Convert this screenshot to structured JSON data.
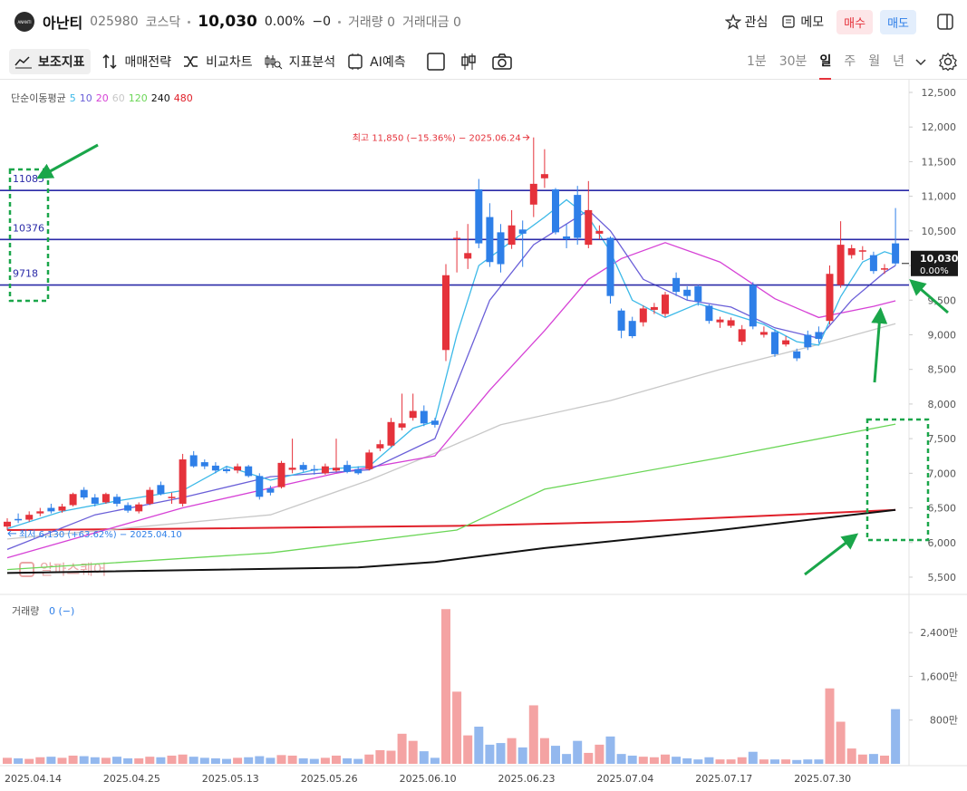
{
  "header": {
    "logo": "ANANTI",
    "name": "아난티",
    "code": "025980",
    "market": "코스닥",
    "price": "10,030",
    "change_pct": "0.00%",
    "change": "−0",
    "volume": "거래량 0",
    "amount": "거래대금 0",
    "watch": "관심",
    "memo": "메모",
    "buy": "매수",
    "sell": "매도"
  },
  "toolbar": {
    "tools": [
      "보조지표",
      "매매전략",
      "비교차트",
      "지표분석",
      "AI예측"
    ],
    "periods": [
      "1분",
      "30분",
      "일",
      "주",
      "월",
      "년"
    ],
    "active_period": 2
  },
  "chart": {
    "ylim": [
      5264,
      12657
    ],
    "yticks": [
      {
        "value": 5500,
        "label": "5,500"
      },
      {
        "value": 6000,
        "label": "6,000"
      },
      {
        "value": 6500,
        "label": "6,500"
      },
      {
        "value": 7000,
        "label": "7,000"
      },
      {
        "value": 7500,
        "label": "7,500"
      },
      {
        "value": 8000,
        "label": "8,000"
      },
      {
        "value": 8500,
        "label": "8,500"
      },
      {
        "value": 9000,
        "label": "9,000"
      },
      {
        "value": 9500,
        "label": "9,500"
      },
      {
        "value": 10000,
        "label": "10,000"
      },
      {
        "value": 10500,
        "label": "10,500"
      },
      {
        "value": 11000,
        "label": "11,000"
      },
      {
        "value": 11500,
        "label": "11,500"
      },
      {
        "value": 12000,
        "label": "12,000"
      },
      {
        "value": 12500,
        "label": "12,500"
      }
    ],
    "up_color": "#e5323b",
    "down_color": "#2e7fe8",
    "candles": [
      [
        6230,
        6350,
        6180,
        6300
      ],
      [
        6340,
        6420,
        6280,
        6320
      ],
      [
        6330,
        6450,
        6300,
        6400
      ],
      [
        6420,
        6500,
        6380,
        6450
      ],
      [
        6500,
        6560,
        6420,
        6450
      ],
      [
        6460,
        6560,
        6430,
        6520
      ],
      [
        6540,
        6720,
        6520,
        6700
      ],
      [
        6760,
        6800,
        6620,
        6650
      ],
      [
        6650,
        6700,
        6520,
        6560
      ],
      [
        6580,
        6720,
        6560,
        6700
      ],
      [
        6660,
        6700,
        6520,
        6560
      ],
      [
        6540,
        6580,
        6430,
        6460
      ],
      [
        6450,
        6580,
        6420,
        6550
      ],
      [
        6560,
        6800,
        6540,
        6760
      ],
      [
        6830,
        6880,
        6680,
        6700
      ],
      [
        6640,
        6720,
        6560,
        6660
      ],
      [
        6560,
        7280,
        6520,
        7200
      ],
      [
        7260,
        7320,
        7080,
        7100
      ],
      [
        7160,
        7200,
        7060,
        7100
      ],
      [
        7110,
        7160,
        7000,
        7040
      ],
      [
        7060,
        7100,
        7000,
        7030
      ],
      [
        7040,
        7140,
        7000,
        7100
      ],
      [
        7100,
        7120,
        6940,
        6960
      ],
      [
        6960,
        7000,
        6620,
        6660
      ],
      [
        6780,
        6820,
        6680,
        6720
      ],
      [
        6800,
        7180,
        6780,
        7150
      ],
      [
        7050,
        7500,
        7000,
        7080
      ],
      [
        7120,
        7160,
        7020,
        7050
      ],
      [
        7060,
        7120,
        6980,
        7040
      ],
      [
        7000,
        7140,
        6980,
        7100
      ],
      [
        7040,
        7500,
        7020,
        7080
      ],
      [
        7120,
        7180,
        7000,
        7020
      ],
      [
        7060,
        7100,
        6980,
        7000
      ],
      [
        7060,
        7340,
        7040,
        7300
      ],
      [
        7360,
        7480,
        7320,
        7420
      ],
      [
        7400,
        7800,
        7380,
        7740
      ],
      [
        7660,
        8150,
        7620,
        7720
      ],
      [
        7800,
        8150,
        7760,
        7900
      ],
      [
        7900,
        7980,
        7680,
        7720
      ],
      [
        7760,
        7800,
        7660,
        7700
      ],
      [
        8780,
        10020,
        8620,
        9860
      ],
      [
        10380,
        10500,
        9900,
        10400
      ],
      [
        10100,
        10600,
        9950,
        10180
      ],
      [
        11100,
        11250,
        10250,
        10320
      ],
      [
        10700,
        10900,
        9980,
        10050
      ],
      [
        10480,
        10600,
        9900,
        10020
      ],
      [
        10300,
        10800,
        10240,
        10580
      ],
      [
        10520,
        10650,
        9980,
        10460
      ],
      [
        10880,
        11850,
        10700,
        11180
      ],
      [
        11260,
        11680,
        11120,
        11320
      ],
      [
        11100,
        11120,
        10450,
        10480
      ],
      [
        10420,
        10600,
        10250,
        10380
      ],
      [
        11020,
        11150,
        10300,
        10400
      ],
      [
        10300,
        11220,
        10250,
        10800
      ],
      [
        10460,
        10580,
        10380,
        10500
      ],
      [
        10400,
        10420,
        9450,
        9560
      ],
      [
        9350,
        9380,
        8950,
        9060
      ],
      [
        9200,
        9260,
        8950,
        8980
      ],
      [
        9180,
        9420,
        9120,
        9380
      ],
      [
        9360,
        9460,
        9300,
        9400
      ],
      [
        9300,
        9620,
        9260,
        9580
      ],
      [
        9820,
        9900,
        9560,
        9620
      ],
      [
        9650,
        9700,
        9500,
        9560
      ],
      [
        9700,
        9720,
        9420,
        9480
      ],
      [
        9420,
        9440,
        9160,
        9200
      ],
      [
        9180,
        9260,
        9100,
        9220
      ],
      [
        9130,
        9250,
        9100,
        9210
      ],
      [
        8900,
        9140,
        8850,
        9080
      ],
      [
        9720,
        9760,
        9080,
        9120
      ],
      [
        9000,
        9120,
        8960,
        9040
      ],
      [
        9040,
        9080,
        8680,
        8720
      ],
      [
        8860,
        8980,
        8830,
        8920
      ],
      [
        8760,
        8800,
        8620,
        8660
      ],
      [
        9000,
        9060,
        8780,
        8820
      ],
      [
        9040,
        9120,
        8880,
        8940
      ],
      [
        9200,
        10000,
        9150,
        9880
      ],
      [
        9720,
        10640,
        9680,
        10300
      ],
      [
        10150,
        10300,
        10100,
        10250
      ],
      [
        10200,
        10280,
        10080,
        10220
      ],
      [
        10150,
        10200,
        9880,
        9920
      ],
      [
        9940,
        10020,
        9880,
        9960
      ],
      [
        10320,
        10830,
        10000,
        10030
      ]
    ],
    "x_labels": [
      {
        "index": 0,
        "label": "2025.04.14"
      },
      {
        "index": 9,
        "label": "2025.04.25"
      },
      {
        "index": 18,
        "label": "2025.05.13"
      },
      {
        "index": 27,
        "label": "2025.05.26"
      },
      {
        "index": 36,
        "label": "2025.06.10"
      },
      {
        "index": 45,
        "label": "2025.06.23"
      },
      {
        "index": 54,
        "label": "2025.07.04"
      },
      {
        "index": 63,
        "label": "2025.07.17"
      },
      {
        "index": 72,
        "label": "2025.07.30"
      }
    ],
    "ma_title": "단순이동평균",
    "ma": [
      {
        "period": 5,
        "color": "#3cb9e8",
        "points": [
          [
            0,
            6200
          ],
          [
            5,
            6450
          ],
          [
            10,
            6600
          ],
          [
            16,
            6750
          ],
          [
            20,
            7100
          ],
          [
            24,
            6900
          ],
          [
            28,
            7050
          ],
          [
            33,
            7100
          ],
          [
            37,
            7650
          ],
          [
            39,
            7750
          ],
          [
            41,
            9000
          ],
          [
            43,
            10000
          ],
          [
            46,
            10350
          ],
          [
            49,
            10700
          ],
          [
            51,
            10950
          ],
          [
            53,
            10700
          ],
          [
            55,
            10200
          ],
          [
            57,
            9500
          ],
          [
            60,
            9250
          ],
          [
            63,
            9450
          ],
          [
            66,
            9300
          ],
          [
            69,
            9150
          ],
          [
            72,
            8900
          ],
          [
            74,
            8850
          ],
          [
            76,
            9550
          ],
          [
            78,
            10050
          ],
          [
            80,
            10200
          ],
          [
            81,
            10150
          ]
        ]
      },
      {
        "period": 10,
        "color": "#6a5fd8",
        "points": [
          [
            0,
            5900
          ],
          [
            8,
            6400
          ],
          [
            16,
            6650
          ],
          [
            24,
            6950
          ],
          [
            33,
            7050
          ],
          [
            39,
            7500
          ],
          [
            41,
            8300
          ],
          [
            44,
            9500
          ],
          [
            48,
            10300
          ],
          [
            51,
            10600
          ],
          [
            53,
            10800
          ],
          [
            55,
            10500
          ],
          [
            58,
            9800
          ],
          [
            62,
            9500
          ],
          [
            66,
            9400
          ],
          [
            70,
            9100
          ],
          [
            74,
            8950
          ],
          [
            77,
            9500
          ],
          [
            80,
            9900
          ],
          [
            81,
            10000
          ]
        ]
      },
      {
        "period": 20,
        "color": "#d642d6",
        "points": [
          [
            0,
            5780
          ],
          [
            16,
            6500
          ],
          [
            30,
            7000
          ],
          [
            39,
            7250
          ],
          [
            44,
            8200
          ],
          [
            49,
            9060
          ],
          [
            53,
            9800
          ],
          [
            56,
            10100
          ],
          [
            60,
            10330
          ],
          [
            65,
            10050
          ],
          [
            70,
            9520
          ],
          [
            74,
            9250
          ],
          [
            79,
            9410
          ],
          [
            81,
            9490
          ]
        ]
      },
      {
        "period": 60,
        "color": "#c8c8c8",
        "points": [
          [
            0,
            6050
          ],
          [
            24,
            6400
          ],
          [
            33,
            6900
          ],
          [
            39,
            7290
          ],
          [
            45,
            7700
          ],
          [
            55,
            8050
          ],
          [
            65,
            8500
          ],
          [
            75,
            8900
          ],
          [
            81,
            9160
          ]
        ]
      },
      {
        "period": 120,
        "color": "#6bd657",
        "points": [
          [
            0,
            5610
          ],
          [
            24,
            5850
          ],
          [
            41,
            6180
          ],
          [
            49,
            6770
          ],
          [
            65,
            7225
          ],
          [
            81,
            7710
          ]
        ]
      },
      {
        "period": 240,
        "color": "#111111",
        "points": [
          [
            0,
            5560
          ],
          [
            32,
            5640
          ],
          [
            39,
            5720
          ],
          [
            49,
            5920
          ],
          [
            65,
            6180
          ],
          [
            81,
            6470
          ]
        ]
      },
      {
        "period": 480,
        "color": "#e0202a",
        "points": [
          [
            0,
            6180
          ],
          [
            16,
            6200
          ],
          [
            41,
            6240
          ],
          [
            57,
            6300
          ],
          [
            81,
            6470
          ]
        ]
      }
    ],
    "levels": [
      11085,
      10376,
      9718
    ],
    "level_color": "#2a2aa8",
    "high_note": {
      "text": "최고 11,850 (−15.36%) − 2025.06.24",
      "value": 11850
    },
    "low_note": {
      "text": "최저 6,130 (+63.62%) − 2025.04.10",
      "value": 6130
    },
    "last_price": "10,030",
    "last_change": "0.00%",
    "watermark": "알파스퀘어",
    "volume": {
      "title": "거래량",
      "status": "0 (−)",
      "ylim": [
        0,
        3000
      ],
      "yticks": [
        {
          "value": 800,
          "label": "800만"
        },
        {
          "value": 1600,
          "label": "1,600만"
        },
        {
          "value": 2400,
          "label": "2,400만"
        }
      ],
      "up_color": "#f4a3a3",
      "down_color": "#93b8ee",
      "values": [
        110,
        100,
        90,
        120,
        130,
        110,
        150,
        140,
        120,
        110,
        130,
        100,
        100,
        130,
        120,
        150,
        170,
        130,
        110,
        100,
        90,
        110,
        120,
        140,
        110,
        160,
        150,
        100,
        90,
        110,
        150,
        100,
        90,
        170,
        250,
        240,
        550,
        420,
        230,
        110,
        2830,
        1320,
        520,
        680,
        350,
        380,
        470,
        300,
        1070,
        470,
        330,
        180,
        420,
        200,
        350,
        500,
        180,
        150,
        130,
        120,
        170,
        130,
        100,
        80,
        120,
        80,
        80,
        120,
        220,
        80,
        80,
        80,
        70,
        80,
        80,
        1380,
        770,
        280,
        170,
        180,
        150,
        1000
      ]
    }
  }
}
